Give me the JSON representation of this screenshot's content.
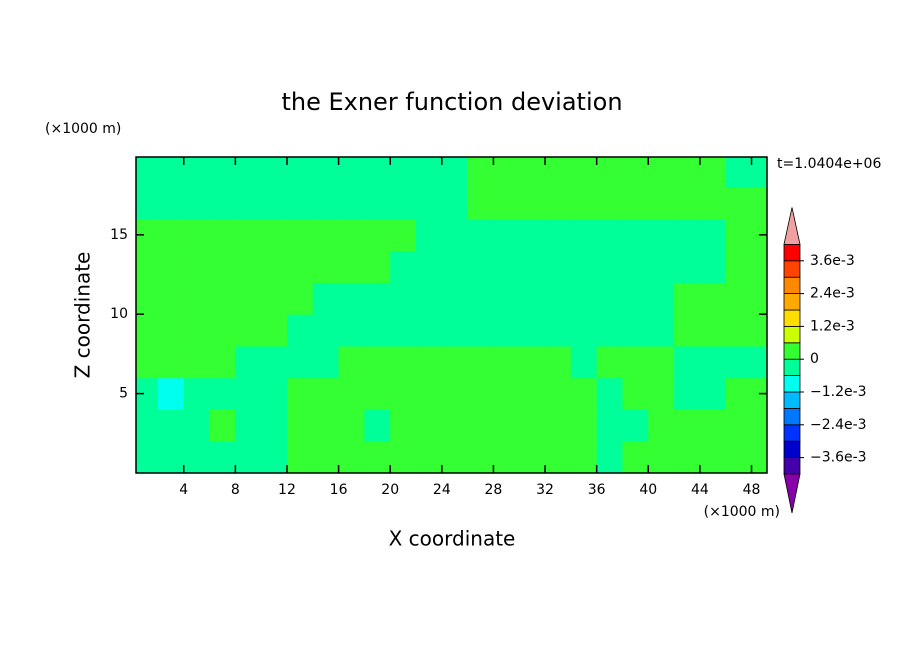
{
  "chart_data": {
    "type": "contour",
    "title": "the Exner function deviation",
    "time_label": "t=1.0404e+06",
    "x_label": "X coordinate",
    "y_label": "Z coordinate",
    "x_unit": "(×1000 m)",
    "y_unit": "(×1000 m)",
    "xlim": [
      0.3,
      49.2
    ],
    "ylim": [
      0,
      19.9
    ],
    "xticks": [
      4,
      8,
      12,
      16,
      20,
      24,
      28,
      32,
      36,
      40,
      44,
      48
    ],
    "yticks": [
      5,
      10,
      15
    ],
    "x": [
      1,
      3,
      5,
      7,
      9,
      11,
      13,
      15,
      17,
      19,
      21,
      23,
      25,
      27,
      29,
      31,
      33,
      35,
      37,
      39,
      41,
      43,
      45,
      47,
      49
    ],
    "y": [
      1,
      3,
      5,
      7,
      9,
      11,
      13,
      15,
      17,
      19
    ],
    "z": [
      [
        -0.0003,
        -0.0003,
        -0.0003,
        -0.0003,
        -0.0003,
        -0.0003,
        0.0003,
        0.0003,
        0.0003,
        0.0003,
        0.0003,
        0.0003,
        0.0003,
        0.0003,
        0.0003,
        0.0003,
        0.0003,
        0.0003,
        -0.0003,
        0.0003,
        0.0003,
        0.0003,
        0.0003,
        0.0003,
        0.0003
      ],
      [
        -0.0003,
        -0.0003,
        -0.0003,
        0.0003,
        -0.0003,
        -0.0003,
        0.0003,
        0.0003,
        0.0003,
        -0.0003,
        0.0003,
        0.0003,
        0.0003,
        0.0003,
        0.0003,
        0.0003,
        0.0003,
        0.0003,
        -0.0003,
        -0.0003,
        0.0003,
        0.0003,
        0.0003,
        0.0003,
        0.0003
      ],
      [
        -0.0003,
        -0.0009,
        -0.0003,
        -0.0003,
        -0.0003,
        -0.0003,
        0.0003,
        0.0003,
        0.0003,
        0.0003,
        0.0003,
        0.0003,
        0.0003,
        0.0003,
        0.0003,
        0.0003,
        0.0003,
        0.0003,
        -0.0003,
        0.0003,
        0.0003,
        -0.0003,
        -0.0003,
        0.0003,
        0.0003
      ],
      [
        0.0003,
        0.0003,
        0.0003,
        0.0003,
        -0.0003,
        -0.0003,
        -0.0003,
        -0.0003,
        0.0003,
        0.0003,
        0.0003,
        0.0003,
        0.0003,
        0.0003,
        0.0003,
        0.0003,
        0.0003,
        -0.0003,
        0.0003,
        0.0003,
        0.0003,
        -0.0003,
        -0.0003,
        -0.0003,
        -0.0003
      ],
      [
        0.0003,
        0.0003,
        0.0003,
        0.0003,
        0.0003,
        0.0003,
        -0.0003,
        -0.0003,
        -0.0003,
        -0.0003,
        -0.0003,
        -0.0003,
        -0.0003,
        -0.0003,
        -0.0003,
        -0.0003,
        -0.0003,
        -0.0003,
        -0.0003,
        -0.0003,
        -0.0003,
        0.0003,
        0.0003,
        0.0003,
        0.0003
      ],
      [
        0.0003,
        0.0003,
        0.0003,
        0.0003,
        0.0003,
        0.0003,
        0.0003,
        -0.0003,
        -0.0003,
        -0.0003,
        -0.0003,
        -0.0003,
        -0.0003,
        -0.0003,
        -0.0003,
        -0.0003,
        -0.0003,
        -0.0003,
        -0.0003,
        -0.0003,
        -0.0003,
        0.0003,
        0.0003,
        0.0003,
        0.0003
      ],
      [
        0.0003,
        0.0003,
        0.0003,
        0.0003,
        0.0003,
        0.0003,
        0.0003,
        0.0003,
        0.0003,
        0.0003,
        -0.0003,
        -0.0003,
        -0.0003,
        -0.0003,
        -0.0003,
        -0.0003,
        -0.0003,
        -0.0003,
        -0.0003,
        -0.0003,
        -0.0003,
        -0.0003,
        -0.0003,
        0.0003,
        0.0003
      ],
      [
        0.0003,
        0.0003,
        0.0003,
        0.0003,
        0.0003,
        0.0003,
        0.0003,
        0.0003,
        0.0003,
        0.0003,
        0.0003,
        -0.0003,
        -0.0003,
        -0.0003,
        -0.0003,
        -0.0003,
        -0.0003,
        -0.0003,
        -0.0003,
        -0.0003,
        -0.0003,
        -0.0003,
        -0.0003,
        0.0003,
        0.0003
      ],
      [
        -0.0003,
        -0.0003,
        -0.0003,
        -0.0003,
        -0.0003,
        -0.0003,
        -0.0003,
        -0.0003,
        -0.0003,
        -0.0003,
        -0.0003,
        -0.0003,
        -0.0003,
        0.0003,
        0.0003,
        0.0003,
        0.0003,
        0.0003,
        0.0003,
        0.0003,
        0.0003,
        0.0003,
        0.0003,
        0.0003,
        0.0003
      ],
      [
        -0.0003,
        -0.0003,
        -0.0003,
        -0.0003,
        -0.0003,
        -0.0003,
        -0.0003,
        -0.0003,
        -0.0003,
        -0.0003,
        -0.0003,
        -0.0003,
        -0.0003,
        0.0003,
        0.0003,
        0.0003,
        0.0003,
        0.0003,
        0.0003,
        0.0003,
        0.0003,
        0.0003,
        0.0003,
        -0.0003,
        -0.0003
      ]
    ],
    "colorbar": {
      "levels": [
        -0.0042,
        -0.0036,
        -0.003,
        -0.0024,
        -0.0018,
        -0.0012,
        -0.0006,
        0,
        0.0006,
        0.0012,
        0.0018,
        0.0024,
        0.003,
        0.0036,
        0.0042
      ],
      "colors": [
        "#8800aa",
        "#4400aa",
        "#0000cc",
        "#0033ff",
        "#0077ff",
        "#00bbff",
        "#00ffee",
        "#00ff99",
        "#33ff33",
        "#ccff00",
        "#ffdd00",
        "#ffaa00",
        "#ff8800",
        "#ff4400",
        "#ff0000",
        "#f0a0a0"
      ],
      "ticks": [
        {
          "value": 0.0036,
          "label": "3.6e-3"
        },
        {
          "value": 0.0024,
          "label": "2.4e-3"
        },
        {
          "value": 0.0012,
          "label": "1.2e-3"
        },
        0,
        {
          "value": -0.0012,
          "label": "−1.2e-3"
        },
        {
          "value": -0.0024,
          "label": "−2.4e-3"
        },
        {
          "value": -0.0036,
          "label": "−3.6e-3"
        }
      ]
    }
  }
}
